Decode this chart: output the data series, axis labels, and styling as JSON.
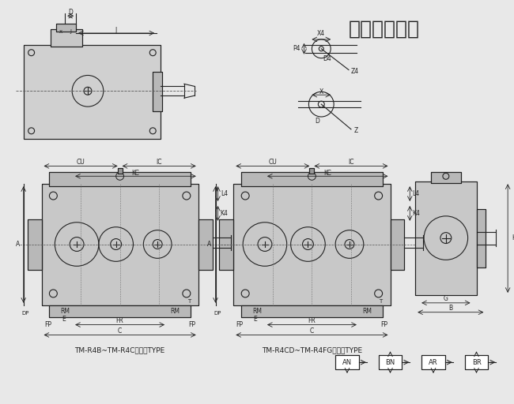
{
  "title": "四段　直交轴",
  "title_fontsize": 18,
  "bg_color": "#e8e8e8",
  "line_color": "#222222",
  "label1": "TM-R4B~TM-R4C适用此TYPE",
  "label2": "TM-R4CD~TM-R4FG适用此TYPE",
  "small_labels": [
    "AN",
    "BN",
    "AR",
    "BR"
  ]
}
